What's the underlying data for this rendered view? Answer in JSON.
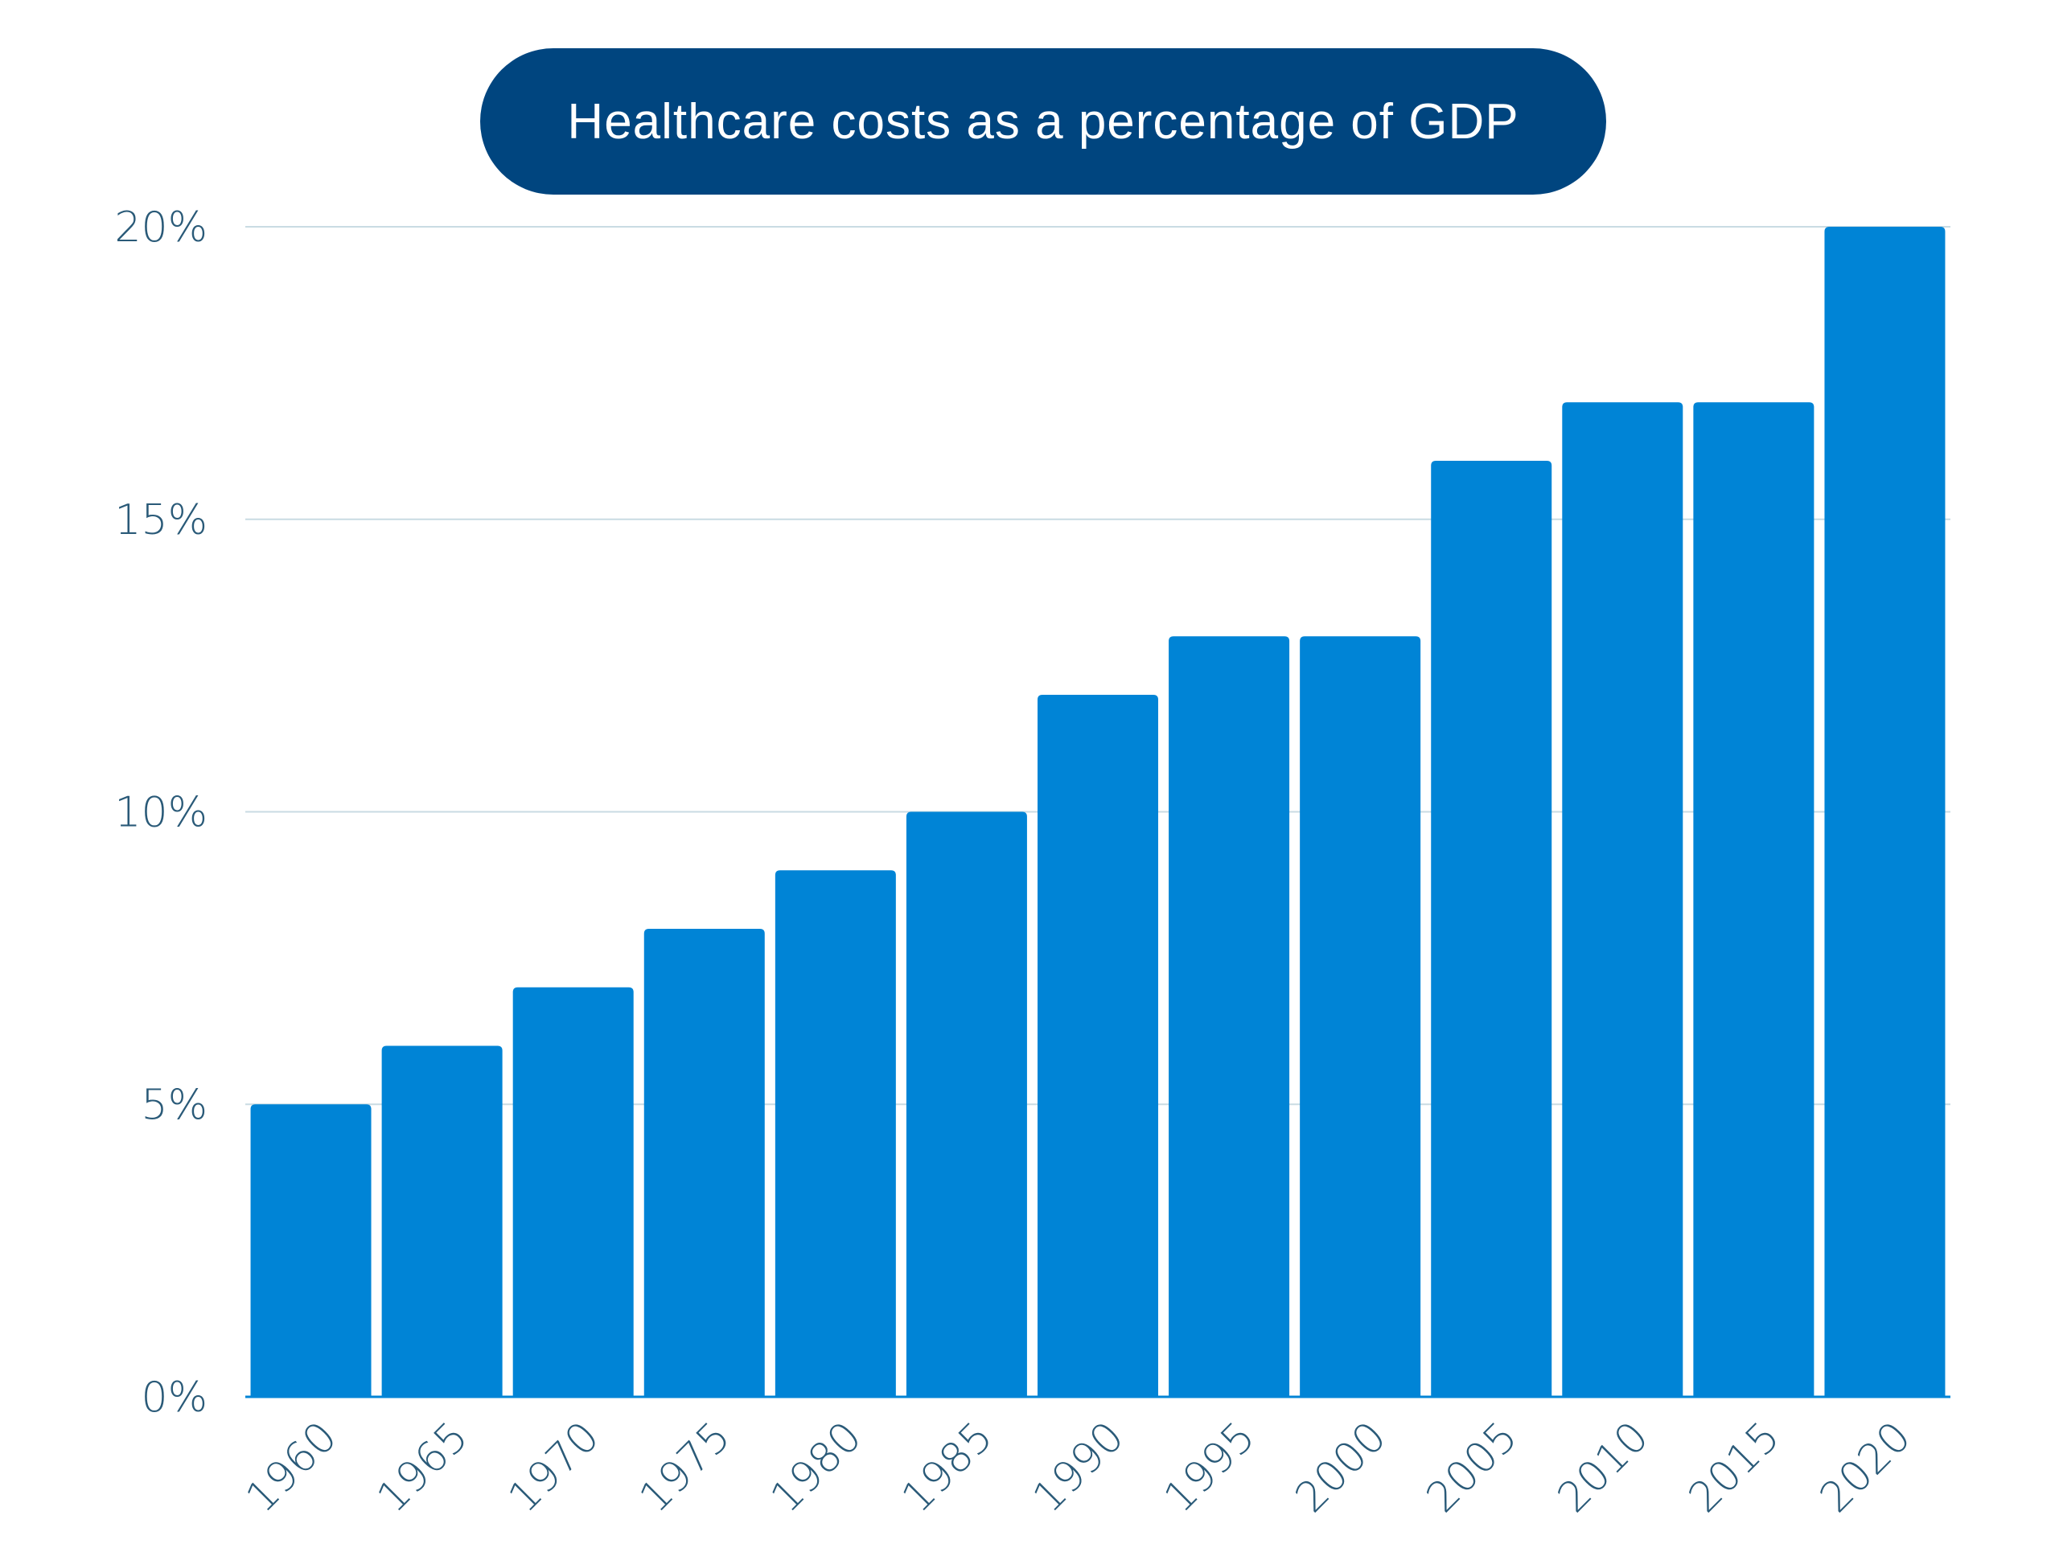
{
  "chart_data": {
    "type": "bar",
    "title": "Healthcare costs as a percentage of GDP",
    "xlabel": "",
    "ylabel": "",
    "categories": [
      "1960",
      "1965",
      "1970",
      "1975",
      "1980",
      "1985",
      "1990",
      "1995",
      "2000",
      "2005",
      "2010",
      "2015",
      "2020"
    ],
    "values": [
      5,
      6,
      7,
      8,
      9,
      10,
      12,
      13,
      13,
      16,
      17,
      17,
      20
    ],
    "ylim": [
      0,
      20
    ],
    "yticks": [
      0,
      5,
      10,
      15,
      20
    ],
    "ytick_labels": [
      "0%",
      "5%",
      "10%",
      "15%",
      "20%"
    ],
    "grid": true,
    "legend": "none"
  },
  "colors": {
    "bar": "#0084d6",
    "title_background": "#00457f",
    "title_text": "#ffffff",
    "tick_text": "#2a5a78",
    "gridline": "#c9dbe3"
  }
}
